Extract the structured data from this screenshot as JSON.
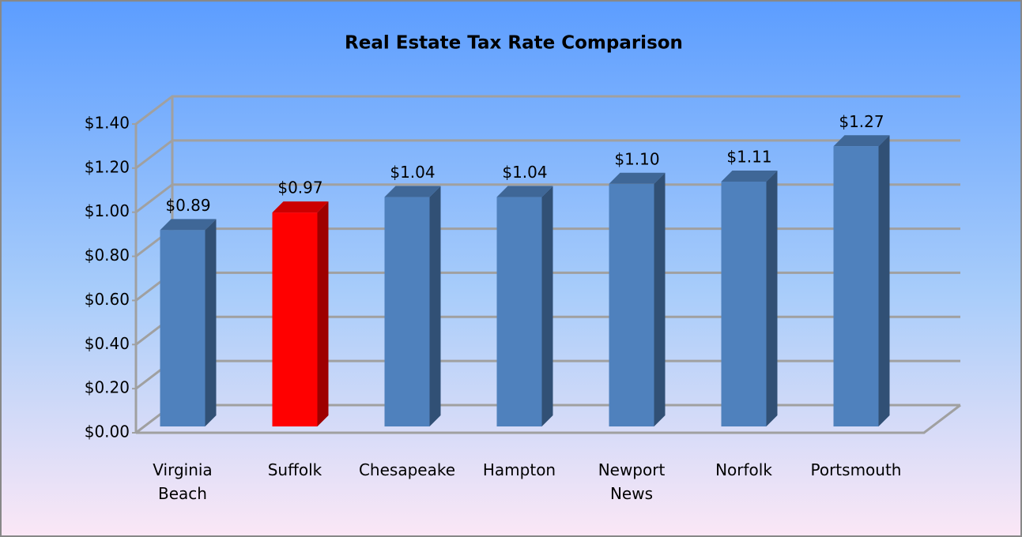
{
  "chart_data": {
    "type": "bar3d",
    "title": "Real Estate Tax Rate Comparison",
    "categories": [
      "Virginia Beach",
      "Suffolk",
      "Chesapeake",
      "Hampton",
      "Newport News",
      "Norfolk",
      "Portsmouth"
    ],
    "values": [
      0.89,
      0.97,
      1.04,
      1.04,
      1.1,
      1.11,
      1.27
    ],
    "value_labels": [
      "$0.89",
      "$0.97",
      "$1.04",
      "$1.04",
      "$1.10",
      "$1.11",
      "$1.27"
    ],
    "colors": [
      "#4f81bd",
      "#ff0000",
      "#4f81bd",
      "#4f81bd",
      "#4f81bd",
      "#4f81bd",
      "#4f81bd"
    ],
    "ylim": [
      0,
      1.4
    ],
    "yticks": [
      {
        "value": 0,
        "label": "$0.00"
      },
      {
        "value": 0.2,
        "label": "$0.20"
      },
      {
        "value": 0.4,
        "label": "$0.40"
      },
      {
        "value": 0.6,
        "label": "$0.60"
      },
      {
        "value": 0.8,
        "label": "$0.80"
      },
      {
        "value": 1.0,
        "label": "$1.00"
      },
      {
        "value": 1.2,
        "label": "$1.20"
      },
      {
        "value": 1.4,
        "label": "$1.40"
      }
    ],
    "grid": true
  }
}
